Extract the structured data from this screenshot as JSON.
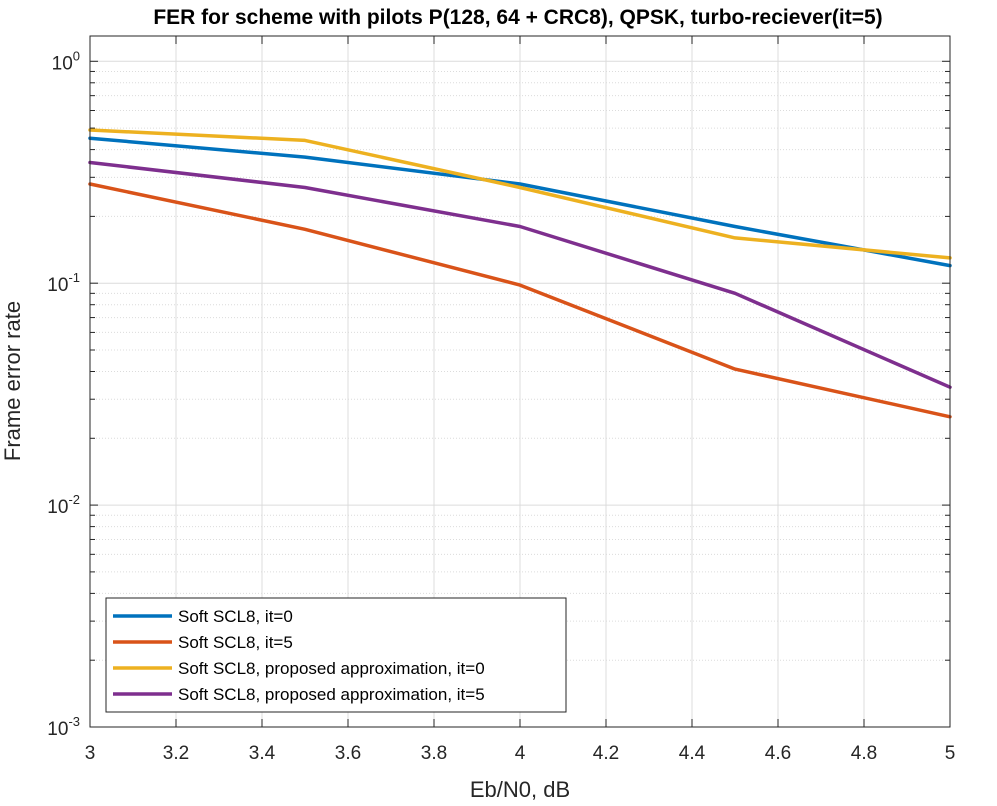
{
  "chart_data": {
    "type": "line",
    "title": "FER for scheme with pilots P(128, 64 + CRC8), QPSK, turbo-reciever(it=5)",
    "xlabel": "Eb/N0, dB",
    "ylabel": "Frame error rate",
    "xlim": [
      3,
      5
    ],
    "ylim": [
      0.001,
      1.3
    ],
    "y_scale": "log",
    "grid": true,
    "minor_grid": true,
    "legend_position": "bottom-left",
    "x_ticks": [
      "3",
      "3.2",
      "3.4",
      "3.6",
      "3.8",
      "4",
      "4.2",
      "4.4",
      "4.6",
      "4.8",
      "5"
    ],
    "y_ticks": [
      {
        "value": 0.001,
        "base": "10",
        "exp": "-3"
      },
      {
        "value": 0.01,
        "base": "10",
        "exp": "-2"
      },
      {
        "value": 0.1,
        "base": "10",
        "exp": "-1"
      },
      {
        "value": 1,
        "base": "10",
        "exp": "0"
      }
    ],
    "series": [
      {
        "name": "Soft SCL8, it=0",
        "color": "#0072BD",
        "x": [
          3,
          3.5,
          4,
          4.5,
          5
        ],
        "y": [
          0.45,
          0.37,
          0.28,
          0.18,
          0.12
        ]
      },
      {
        "name": "Soft SCL8, it=5",
        "color": "#D95319",
        "x": [
          3,
          3.5,
          4,
          4.5,
          5
        ],
        "y": [
          0.28,
          0.175,
          0.098,
          0.041,
          0.025
        ]
      },
      {
        "name": "Soft SCL8, proposed approximation, it=0",
        "color": "#EDB120",
        "x": [
          3,
          3.5,
          4,
          4.5,
          5
        ],
        "y": [
          0.49,
          0.44,
          0.27,
          0.16,
          0.13
        ]
      },
      {
        "name": "Soft SCL8, proposed approximation, it=5",
        "color": "#7E2F8E",
        "x": [
          3,
          3.5,
          4,
          4.5,
          5
        ],
        "y": [
          0.35,
          0.27,
          0.18,
          0.09,
          0.034
        ]
      }
    ]
  }
}
